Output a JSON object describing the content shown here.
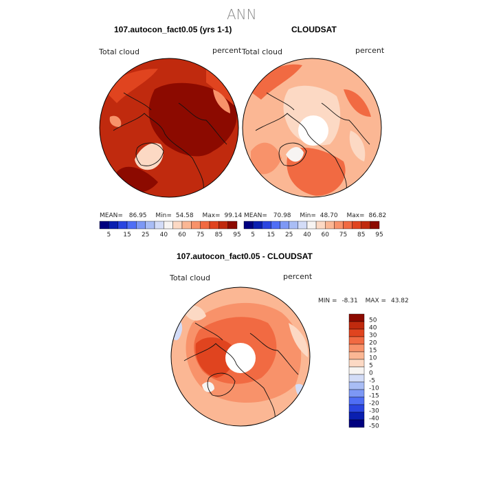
{
  "title": "ANN",
  "panels": [
    {
      "title": "107.autocon_fact0.05 (yrs 1-1)",
      "left_label": "Total cloud",
      "right_label": "percent",
      "stats": {
        "mean_label": "MEAN=",
        "mean": "86.95",
        "min_label": "Min=",
        "min": "54.58",
        "max_label": "Max=",
        "max": "99.14"
      }
    },
    {
      "title": "CLOUDSAT",
      "left_label": "Total cloud",
      "right_label": "percent",
      "stats": {
        "mean_label": "MEAN=",
        "mean": "70.98",
        "min_label": "Min=",
        "min": "48.70",
        "max_label": "Max=",
        "max": "86.82"
      }
    },
    {
      "title": "107.autocon_fact0.05 - CLOUDSAT",
      "left_label": "Total cloud",
      "right_label": "percent",
      "stats": {
        "min_label": "MIN =",
        "min": "-8.31",
        "max_label": "MAX =",
        "max": "43.82"
      }
    }
  ],
  "horizontal_colorbar": {
    "labels": [
      "5",
      "15",
      "25",
      "40",
      "60",
      "75",
      "85",
      "95"
    ],
    "colors": [
      "#00007f",
      "#0a1fb0",
      "#2a45e0",
      "#4f6ef5",
      "#7d98f5",
      "#a9bdf5",
      "#d3dcf7",
      "#f7f4f2",
      "#fcd9c4",
      "#fbb794",
      "#f8926a",
      "#f16a42",
      "#e0441f",
      "#c02a0e",
      "#8c0a00"
    ]
  },
  "vertical_colorbar": {
    "labels": [
      "50",
      "40",
      "30",
      "20",
      "15",
      "10",
      "5",
      "0",
      "-5",
      "-10",
      "-15",
      "-20",
      "-30",
      "-40",
      "-50"
    ],
    "colors": [
      "#8c0a00",
      "#c02a0e",
      "#e0441f",
      "#f16a42",
      "#f8926a",
      "#fbb794",
      "#fcd9c4",
      "#f7f4f2",
      "#d3dcf7",
      "#a9bdf5",
      "#7d98f5",
      "#4f6ef5",
      "#2a45e0",
      "#0a1fb0",
      "#00007f"
    ]
  },
  "map_colors": {
    "p1_base": "#c02a0e",
    "p1_dark": "#8c0a00",
    "p1_mid": "#e0441f",
    "p1_light": "#f8926a",
    "p1_green": "#fcd9c4",
    "p2_base": "#fbb794",
    "p2_mid": "#f8926a",
    "p2_dark": "#f16a42",
    "p2_light": "#fcd9c4",
    "p2_pale": "#f7f4f2",
    "p3_base": "#fbb794",
    "p3_mid": "#f8926a",
    "p3_dark": "#f16a42",
    "p3_deep": "#e0441f",
    "p3_pale": "#fcd9c4",
    "p3_blue": "#d3dcf7",
    "p3_white": "#f7f4f2"
  }
}
